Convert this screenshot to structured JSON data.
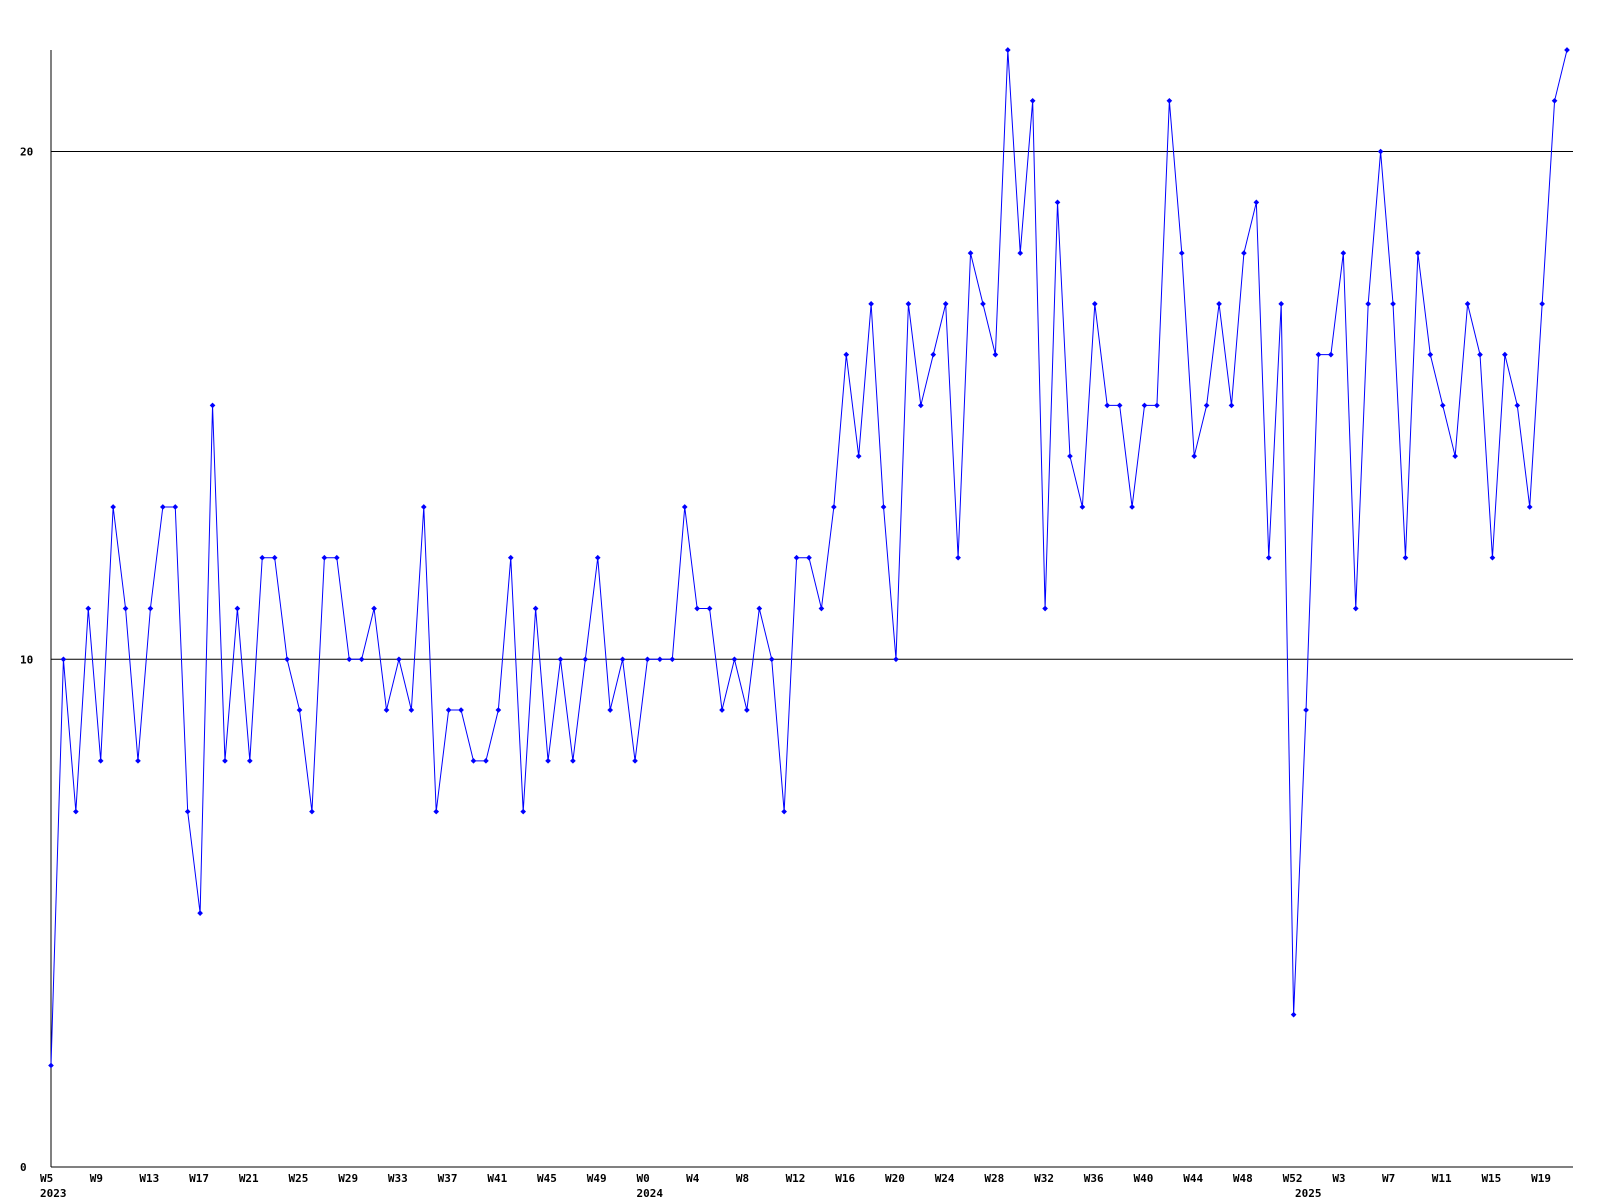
{
  "chart_data": {
    "type": "line",
    "categories": [
      "W5",
      null,
      null,
      null,
      "W9",
      null,
      null,
      null,
      "W13",
      null,
      null,
      null,
      "W17",
      null,
      null,
      null,
      "W21",
      null,
      null,
      null,
      "W25",
      null,
      null,
      null,
      "W29",
      null,
      null,
      null,
      "W33",
      null,
      null,
      null,
      "W37",
      null,
      null,
      null,
      "W41",
      null,
      null,
      null,
      "W45",
      null,
      null,
      null,
      "W49",
      null,
      null,
      null,
      "W0",
      null,
      null,
      null,
      "W4",
      null,
      null,
      null,
      "W8",
      null,
      null,
      null,
      "W12",
      null,
      null,
      null,
      "W16",
      null,
      null,
      null,
      "W20",
      null,
      null,
      null,
      "W24",
      null,
      null,
      null,
      "W28",
      null,
      null,
      null,
      "W32",
      null,
      null,
      null,
      "W36",
      null,
      null,
      null,
      "W40",
      null,
      null,
      null,
      "W44",
      null,
      null,
      null,
      "W48",
      null,
      null,
      null,
      "W52",
      null,
      null,
      null,
      "W3",
      null,
      null,
      null,
      "W7",
      null,
      null,
      null,
      "W11",
      null,
      null,
      null,
      "W15",
      null,
      null,
      null,
      "W19",
      null,
      null
    ],
    "years": [
      "2023",
      null,
      null,
      null,
      null,
      null,
      null,
      null,
      null,
      null,
      null,
      null,
      null,
      null,
      null,
      null,
      null,
      null,
      null,
      null,
      null,
      null,
      null,
      null,
      null,
      null,
      null,
      null,
      null,
      null,
      null,
      null,
      null,
      null,
      null,
      null,
      null,
      null,
      null,
      null,
      null,
      null,
      null,
      null,
      null,
      null,
      null,
      null,
      "2024",
      null,
      null,
      null,
      null,
      null,
      null,
      null,
      null,
      null,
      null,
      null,
      null,
      null,
      null,
      null,
      null,
      null,
      null,
      null,
      null,
      null,
      null,
      null,
      null,
      null,
      null,
      null,
      null,
      null,
      null,
      null,
      null,
      null,
      null,
      null,
      null,
      null,
      null,
      null,
      null,
      null,
      null,
      null,
      null,
      null,
      null,
      null,
      null,
      null,
      null,
      null,
      null,
      "2025",
      null,
      null,
      null,
      null,
      null,
      null,
      null,
      null,
      null,
      null,
      null,
      null,
      null,
      null,
      null,
      null,
      null,
      null,
      null,
      null,
      null
    ],
    "series": [
      {
        "color": "#0000ff",
        "values": [
          2,
          10,
          7,
          11,
          8,
          13,
          11,
          8,
          11,
          13,
          13,
          7,
          5,
          15,
          8,
          11,
          8,
          12,
          12,
          10,
          9,
          7,
          12,
          12,
          10,
          10,
          11,
          9,
          10,
          9,
          13,
          7,
          9,
          9,
          8,
          8,
          9,
          12,
          7,
          11,
          8,
          10,
          8,
          10,
          12,
          9,
          10,
          8,
          10,
          10,
          10,
          13,
          11,
          11,
          9,
          10,
          9,
          11,
          10,
          7,
          12,
          12,
          11,
          13,
          16,
          14,
          17,
          13,
          10,
          17,
          15,
          16,
          17,
          12,
          18,
          17,
          16,
          22,
          18,
          21,
          11,
          19,
          14,
          13,
          17,
          15,
          15,
          13,
          15,
          15,
          21,
          18,
          14,
          15,
          17,
          15,
          18,
          19,
          12,
          17,
          3,
          9,
          16,
          16,
          18,
          11,
          17,
          20,
          17,
          12,
          18,
          16,
          15,
          14,
          17,
          16,
          12,
          16,
          15,
          13,
          17,
          21,
          22
        ]
      }
    ],
    "ylim": [
      0,
      22
    ],
    "yticks": [
      0,
      10,
      20
    ],
    "grid": true
  }
}
